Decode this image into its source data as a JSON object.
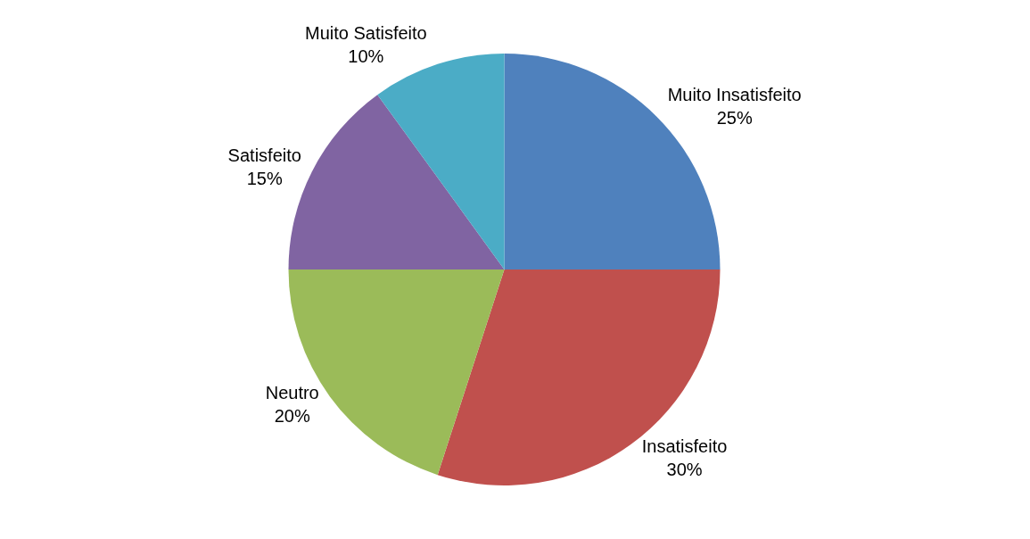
{
  "chart_data": {
    "type": "pie",
    "categories": [
      "Muito Insatisfeito",
      "Insatisfeito",
      "Neutro",
      "Satisfeito",
      "Muito Satisfeito"
    ],
    "values": [
      25,
      30,
      20,
      15,
      10
    ],
    "value_labels": [
      "25%",
      "30%",
      "20%",
      "15%",
      "10%"
    ],
    "colors": [
      "#4f81bd",
      "#c0504d",
      "#9bbb59",
      "#8064a2",
      "#4bacc6"
    ],
    "legend": false
  }
}
